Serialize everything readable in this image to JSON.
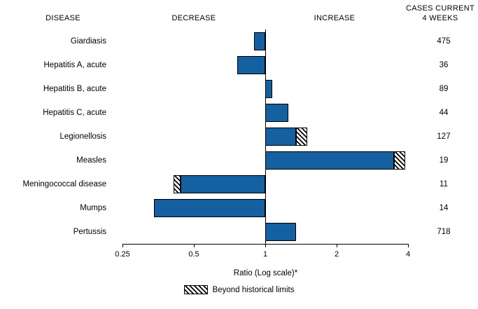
{
  "headers": {
    "disease": "DISEASE",
    "decrease": "DECREASE",
    "increase": "INCREASE",
    "cases_line1": "CASES CURRENT",
    "cases_line2": "4 WEEKS"
  },
  "colors": {
    "bar": "#1560a0",
    "outline": "#000000",
    "background": "#ffffff"
  },
  "chart_data": {
    "type": "bar",
    "orientation": "horizontal",
    "scale": "log2",
    "title": "",
    "xlabel": "Ratio (Log scale)*",
    "legend_label": "Beyond historical limits",
    "legend_position": "bottom-center",
    "axis": {
      "min": 0.25,
      "max": 4,
      "baseline": 1,
      "ticks": [
        0.25,
        0.5,
        1,
        2,
        4
      ]
    },
    "grid": false,
    "rows": [
      {
        "disease": "Giardiasis",
        "ratio": 0.9,
        "beyond": false,
        "solid_ratio": 0.9,
        "cases": 475
      },
      {
        "disease": "Hepatitis A, acute",
        "ratio": 0.76,
        "beyond": false,
        "solid_ratio": 0.76,
        "cases": 36
      },
      {
        "disease": "Hepatitis B, acute",
        "ratio": 1.07,
        "beyond": false,
        "solid_ratio": 1.07,
        "cases": 89
      },
      {
        "disease": "Hepatitis C, acute",
        "ratio": 1.25,
        "beyond": false,
        "solid_ratio": 1.25,
        "cases": 44
      },
      {
        "disease": "Legionellosis",
        "ratio": 1.5,
        "beyond": true,
        "solid_ratio": 1.35,
        "cases": 127
      },
      {
        "disease": "Measles",
        "ratio": 3.9,
        "beyond": true,
        "solid_ratio": 3.5,
        "cases": 19
      },
      {
        "disease": "Meningococcal disease",
        "ratio": 0.41,
        "beyond": true,
        "solid_ratio": 0.44,
        "cases": 11
      },
      {
        "disease": "Mumps",
        "ratio": 0.34,
        "beyond": false,
        "solid_ratio": 0.34,
        "cases": 14
      },
      {
        "disease": "Pertussis",
        "ratio": 1.35,
        "beyond": false,
        "solid_ratio": 1.35,
        "cases": 718
      }
    ]
  }
}
